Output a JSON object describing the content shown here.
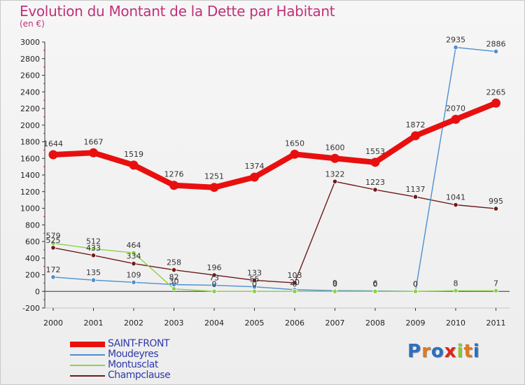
{
  "title": "Evolution du Montant de la Dette par Habitant",
  "subtitle": "(en €)",
  "logo": {
    "text": "Proxiti",
    "colors": [
      "#2b6fbf",
      "#e07a1f",
      "#2b6fbf",
      "#e2231a",
      "#8dc63f",
      "#e07a1f",
      "#2b6fbf"
    ]
  },
  "chart_data": {
    "type": "line",
    "title": "Evolution du Montant de la Dette par Habitant",
    "subtitle": "(en €)",
    "xlabel": "",
    "ylabel": "",
    "x": [
      "2000",
      "2001",
      "2002",
      "2003",
      "2004",
      "2005",
      "2006",
      "2007",
      "2008",
      "2009",
      "2010",
      "2011"
    ],
    "ylim": [
      -200,
      3000
    ],
    "yticks": [
      -200,
      0,
      200,
      400,
      600,
      800,
      1000,
      1200,
      1400,
      1600,
      1800,
      2000,
      2200,
      2400,
      2600,
      2800,
      3000
    ],
    "grid": false,
    "legend_position": "bottom-left",
    "series": [
      {
        "name": "SAINT-FRONT",
        "color": "#e8100f",
        "values": [
          1644,
          1667,
          1519,
          1276,
          1251,
          1374,
          1650,
          1600,
          1553,
          1872,
          2070,
          2265
        ],
        "labels": [
          "1644",
          "1667",
          "1519",
          "1276",
          "1251",
          "1374",
          "1650",
          "1600",
          "1553",
          "1872",
          "2070",
          "2265"
        ]
      },
      {
        "name": "Moudeyres",
        "color": "#4d8fd0",
        "values": [
          172,
          135,
          109,
          82,
          73,
          55,
          20,
          9,
          6,
          0,
          2935,
          2886
        ],
        "labels": [
          "172",
          "135",
          "109",
          "82",
          "73",
          "55",
          "20",
          "9",
          "6",
          "0",
          "2935",
          "2886"
        ]
      },
      {
        "name": "Montusclat",
        "color": "#8ed14c",
        "values": [
          579,
          512,
          464,
          30,
          0,
          0,
          0,
          0,
          0,
          0,
          8,
          7
        ],
        "labels": [
          "579",
          "512",
          "464",
          "30",
          "0",
          "0",
          "0",
          "0",
          "0",
          "0",
          "8",
          "7"
        ]
      },
      {
        "name": "Champclause",
        "color": "#6e1a1a",
        "values": [
          525,
          433,
          334,
          258,
          196,
          133,
          103,
          1322,
          1223,
          1137,
          1041,
          995
        ],
        "labels": [
          "525",
          "433",
          "334",
          "258",
          "196",
          "133",
          "103",
          "1322",
          "1223",
          "1137",
          "1041",
          "995"
        ]
      }
    ]
  }
}
